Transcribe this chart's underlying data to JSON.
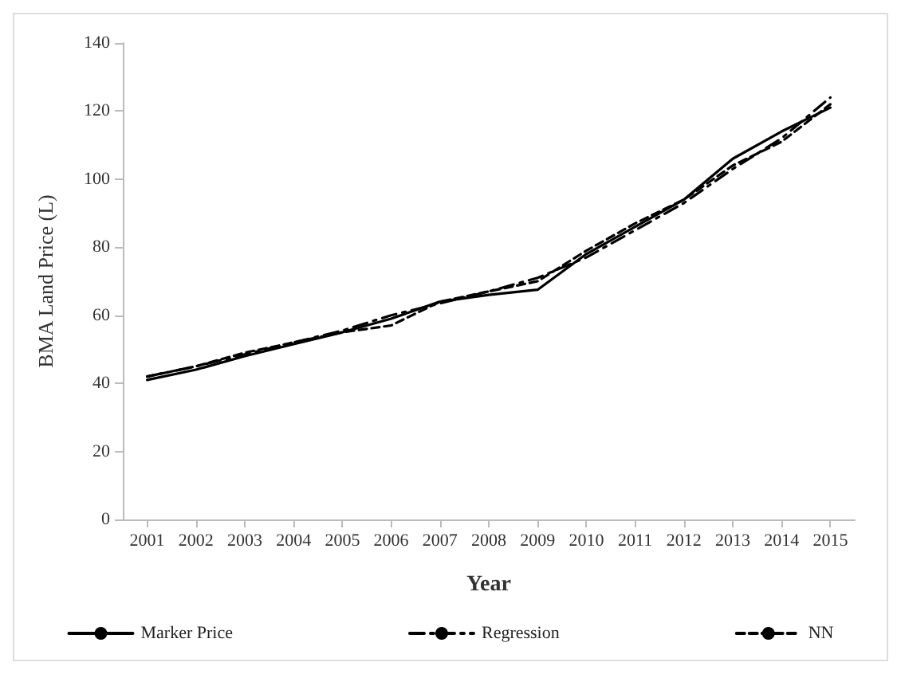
{
  "chart_data": {
    "type": "line",
    "xlabel": "Year",
    "ylabel": "BMA Land Price (L)",
    "categories": [
      "2001",
      "2002",
      "2003",
      "2004",
      "2005",
      "2006",
      "2007",
      "2008",
      "2009",
      "2010",
      "2011",
      "2012",
      "2013",
      "2014",
      "2015"
    ],
    "series": [
      {
        "name": "Marker Price",
        "color": "#000000",
        "line_style": "solid",
        "values": [
          41,
          44,
          48,
          51.5,
          55,
          59,
          64,
          66,
          67.5,
          78,
          86,
          94,
          106,
          114,
          121
        ]
      },
      {
        "name": "Regression",
        "color": "#000000",
        "line_style": "dashdot",
        "values": [
          42,
          45,
          48.5,
          52,
          55.5,
          60,
          63.5,
          67,
          71,
          77,
          85,
          93,
          103,
          112,
          124
        ]
      },
      {
        "name": "NN",
        "color": "#000000",
        "line_style": "dashed",
        "values": [
          42,
          45,
          49,
          52,
          55,
          57,
          64,
          67,
          70,
          79,
          87,
          94,
          104,
          111,
          122
        ]
      }
    ],
    "ylim": [
      0,
      140
    ],
    "yticks": [
      0,
      20,
      40,
      60,
      80,
      100,
      120,
      140
    ],
    "grid": false,
    "legend": "bottom",
    "marker": "none"
  }
}
